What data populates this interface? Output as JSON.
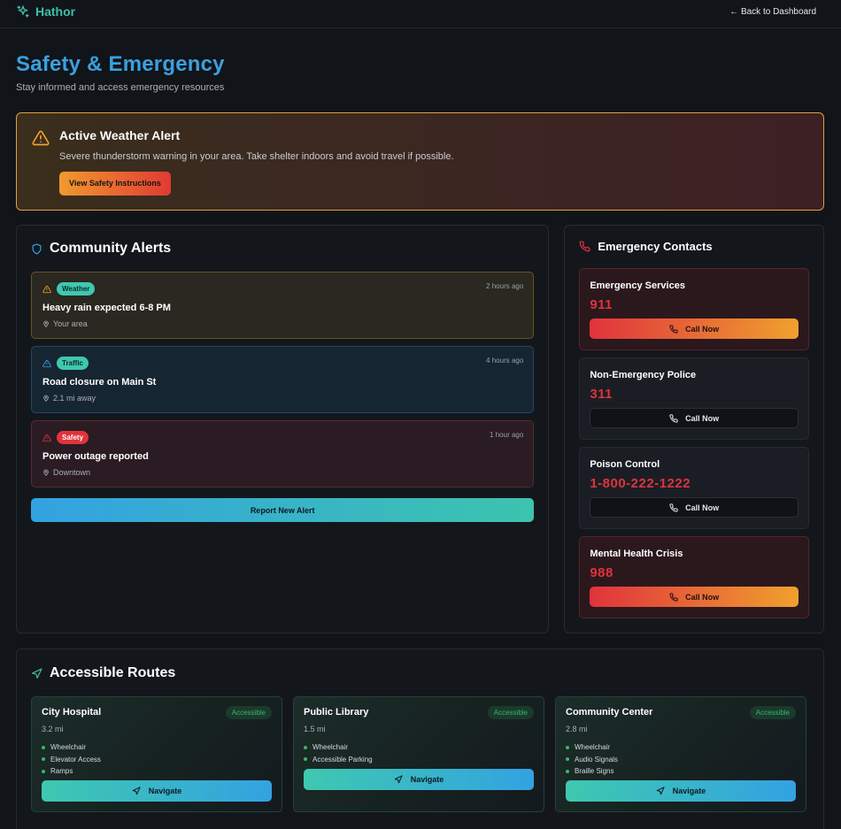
{
  "topbar": {
    "brand": "Hathor",
    "back_label": "← Back to Dashboard"
  },
  "page": {
    "title": "Safety & Emergency",
    "subtitle": "Stay informed and access emergency resources"
  },
  "weather_alert": {
    "title": "Active Weather Alert",
    "message": "Severe thunderstorm warning in your area. Take shelter indoors and avoid travel if possible.",
    "button_label": "View Safety Instructions"
  },
  "community": {
    "title": "Community Alerts",
    "alerts": [
      {
        "tag": "Weather",
        "time": "2 hours ago",
        "title": "Heavy rain expected 6-8 PM",
        "location": "Your area"
      },
      {
        "tag": "Traffic",
        "time": "4 hours ago",
        "title": "Road closure on Main St",
        "location": "2.1 mi away"
      },
      {
        "tag": "Safety",
        "time": "1 hour ago",
        "title": "Power outage reported",
        "location": "Downtown"
      }
    ],
    "report_label": "Report New Alert"
  },
  "contacts": {
    "title": "Emergency Contacts",
    "items": [
      {
        "name": "Emergency Services",
        "number": "911",
        "button": "Call Now"
      },
      {
        "name": "Non-Emergency Police",
        "number": "311",
        "button": "Call Now"
      },
      {
        "name": "Poison Control",
        "number": "1-800-222-1222",
        "button": "Call Now"
      },
      {
        "name": "Mental Health Crisis",
        "number": "988",
        "button": "Call Now"
      }
    ]
  },
  "routes": {
    "title": "Accessible Routes",
    "items": [
      {
        "name": "City Hospital",
        "badge": "Accessible",
        "distance": "3.2 mi",
        "features": [
          "Wheelchair",
          "Elevator Access",
          "Ramps"
        ],
        "button": "Navigate"
      },
      {
        "name": "Public Library",
        "badge": "Accessible",
        "distance": "1.5 mi",
        "features": [
          "Wheelchair",
          "Accessible Parking"
        ],
        "button": "Navigate"
      },
      {
        "name": "Community Center",
        "badge": "Accessible",
        "distance": "2.8 mi",
        "features": [
          "Wheelchair",
          "Audio Signals",
          "Braille Signs"
        ],
        "button": "Navigate"
      }
    ]
  },
  "colors": {
    "brand": "#3dbfa8",
    "title": "#3aa0e0",
    "danger": "#e0333d",
    "warning": "#e0a23a",
    "success": "#35b86a"
  }
}
